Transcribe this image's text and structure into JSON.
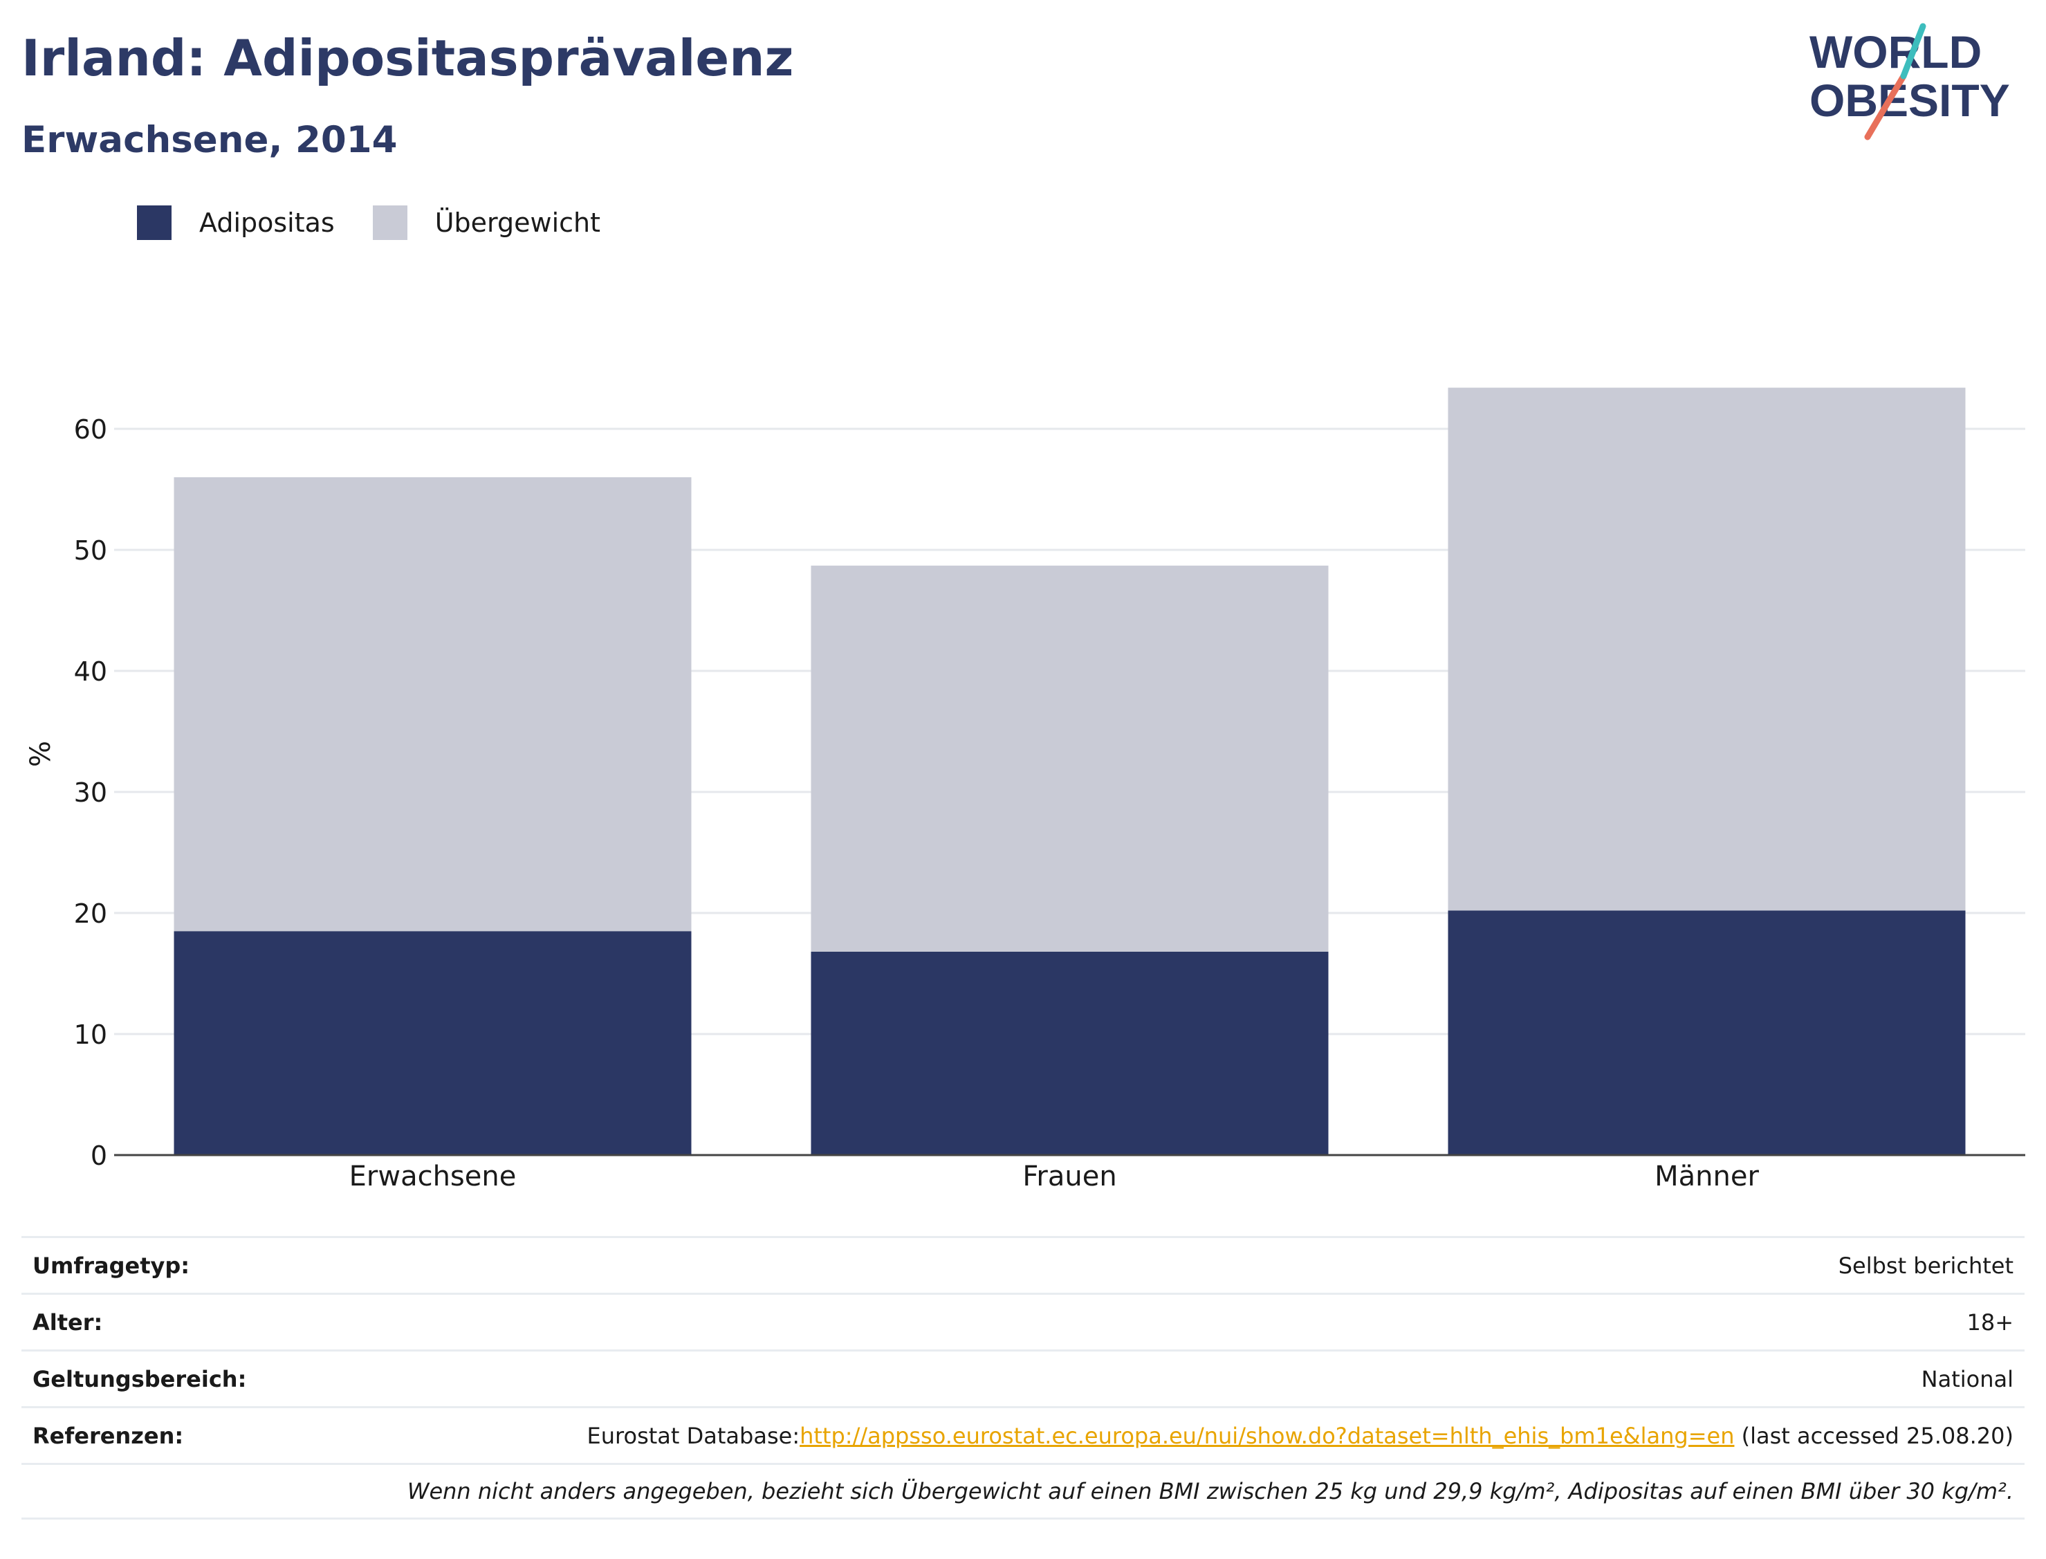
{
  "header": {
    "title": "Irland: Adipositasprävalenz",
    "subtitle": "Erwachsene, 2014"
  },
  "logo": {
    "line1": "WORLD",
    "line2": "OBESITY",
    "accent_teal": "#3dbdbd",
    "accent_coral": "#e8705a"
  },
  "colors": {
    "obesity": "#2b3764",
    "overweight": "#c9cbd6",
    "title": "#2d3a66",
    "link": "#e8a400"
  },
  "chart_data": {
    "type": "bar",
    "stacked": true,
    "categories": [
      "Erwachsene",
      "Frauen",
      "Männer"
    ],
    "series": [
      {
        "name": "Adipositas",
        "values": [
          18.5,
          16.8,
          20.2
        ]
      },
      {
        "name": "Übergewicht",
        "values": [
          37.5,
          31.9,
          43.2
        ]
      }
    ],
    "ylabel": "%",
    "xlabel": "",
    "ylim": [
      0,
      70
    ],
    "yticks": [
      0,
      10,
      20,
      30,
      40,
      50,
      60
    ],
    "grid": true,
    "legend_position": "top-left"
  },
  "meta": {
    "rows": [
      {
        "key": "Umfragetyp:",
        "value": "Selbst berichtet"
      },
      {
        "key": "Alter:",
        "value": "18+"
      },
      {
        "key": "Geltungsbereich:",
        "value": "National"
      }
    ],
    "references": {
      "key": "Referenzen:",
      "prefix": "Eurostat Database:",
      "link": "http://appsso.eurostat.ec.europa.eu/nui/show.do?dataset=hlth_ehis_bm1e&lang=en",
      "suffix": " (last accessed 25.08.20)"
    },
    "note": "Wenn nicht anders angegeben, bezieht sich Übergewicht auf einen BMI zwischen 25 kg und 29,9 kg/m², Adipositas auf einen BMI über 30 kg/m²."
  }
}
